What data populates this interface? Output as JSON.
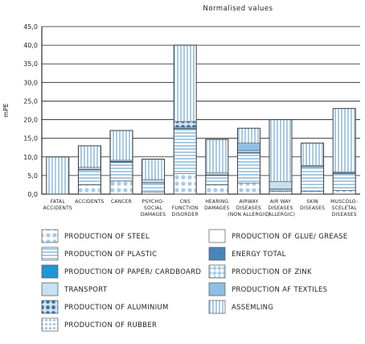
{
  "chart_data": {
    "type": "bar",
    "stacked": true,
    "title": "Normalised values",
    "ylabel": "mPE",
    "xlabel": "",
    "ylim": [
      0,
      45
    ],
    "yticks": [
      "0,0",
      "5,0",
      "10,0",
      "15,0",
      "20,0",
      "25,0",
      "30,0",
      "35,0",
      "40,0",
      "45,0"
    ],
    "grid": "horizontal",
    "legend": "bottom",
    "categories": [
      [
        "Fatal",
        "accidents"
      ],
      [
        "Accidents"
      ],
      [
        "Cancer"
      ],
      [
        "Psycho-",
        "social",
        "damages"
      ],
      [
        "CNS",
        "function",
        "disorder"
      ],
      [
        "Hearing",
        "damages"
      ],
      [
        "Airway",
        "diseases",
        "(non allergic)"
      ],
      [
        "Air way",
        "diseases",
        "(allergic)"
      ],
      [
        "Skin",
        "diseases"
      ],
      [
        "Muscolo-",
        "sceletal",
        "diseases"
      ]
    ],
    "series": [
      {
        "name": "Production of steel",
        "pattern": "dots",
        "values": [
          0,
          2.5,
          3.5,
          0.5,
          5.5,
          2.5,
          3.0,
          0.8,
          0.8,
          1.0
        ]
      },
      {
        "name": "Production of plastic",
        "pattern": "hstripes",
        "values": [
          0,
          4.0,
          5.0,
          2.5,
          12.0,
          2.5,
          8.0,
          0.5,
          6.5,
          4.5
        ]
      },
      {
        "name": "Production of paper/ cardboard",
        "pattern": "solid-blue",
        "values": [
          0,
          0.2,
          0.3,
          0.1,
          0.2,
          0.2,
          0.2,
          0.1,
          0.1,
          0.2
        ]
      },
      {
        "name": "transport",
        "pattern": "light-blue",
        "values": [
          0,
          0.5,
          0.3,
          0.8,
          0.3,
          0.5,
          0.5,
          2.0,
          0.3,
          0.3
        ]
      },
      {
        "name": "Production of aluminium",
        "pattern": "big-dots",
        "values": [
          0,
          0,
          0,
          0,
          1.5,
          0,
          0,
          0,
          0,
          0
        ]
      },
      {
        "name": "Production of rubber",
        "pattern": "small-dots",
        "values": [
          0,
          0,
          0,
          0,
          0,
          0,
          0,
          0,
          0,
          0
        ]
      },
      {
        "name": "Production of glue/ grease",
        "pattern": "white",
        "values": [
          0,
          0,
          0,
          0,
          0,
          0,
          0,
          0,
          0,
          0
        ]
      },
      {
        "name": "Energy total",
        "pattern": "steel-blue",
        "values": [
          0,
          0,
          0,
          0,
          0,
          0,
          0,
          0,
          0,
          0
        ]
      },
      {
        "name": "Production of zink",
        "pattern": "diamonds",
        "values": [
          0,
          0,
          0,
          0,
          0,
          0,
          0,
          0,
          0,
          0
        ]
      },
      {
        "name": "Production af textiles",
        "pattern": "mid-blue",
        "values": [
          0,
          0,
          0,
          0,
          0,
          0,
          2.0,
          0,
          0,
          0
        ]
      },
      {
        "name": "Assemling",
        "pattern": "vstripes",
        "values": [
          10.0,
          5.8,
          8.0,
          5.5,
          20.5,
          9.0,
          4.0,
          16.6,
          6.0,
          17.0
        ]
      }
    ],
    "legend_layout": [
      [
        "Production of steel",
        "Production of glue/ grease"
      ],
      [
        "Production of plastic",
        "Energy total"
      ],
      [
        "Production of paper/ cardboard",
        "Production of zink"
      ],
      [
        "transport",
        "Production af textiles"
      ],
      [
        "Production of aluminium",
        "Assemling"
      ],
      [
        "Production of rubber",
        null
      ]
    ]
  }
}
